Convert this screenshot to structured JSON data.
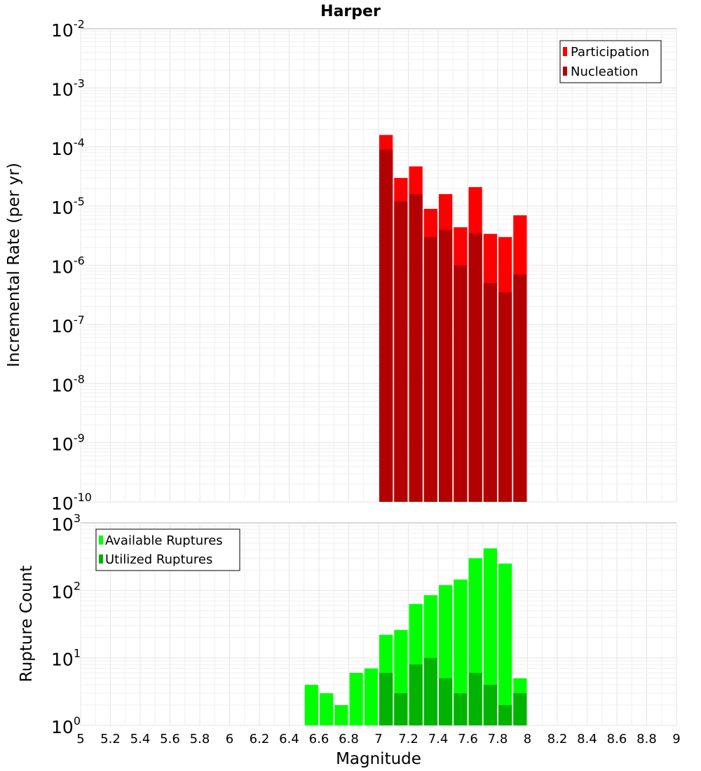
{
  "chart_data": [
    {
      "type": "bar",
      "title": "Harper",
      "xlabel": "",
      "ylabel": "Incremental Rate (per yr)",
      "yscale": "log",
      "ylim_exponents": [
        -10,
        -2
      ],
      "xlim": [
        5,
        9
      ],
      "bar_width": 0.1,
      "legend_position": "top-right",
      "series": [
        {
          "name": "Participation",
          "color": "#ff0000",
          "x": [
            7.0,
            7.1,
            7.2,
            7.3,
            7.4,
            7.5,
            7.6,
            7.7,
            7.8,
            7.9
          ],
          "values": [
            0.00016,
            3e-05,
            4.7e-05,
            9e-06,
            1.6e-05,
            4.4e-06,
            2.1e-05,
            3.4e-06,
            3e-06,
            7e-06
          ]
        },
        {
          "name": "Nucleation",
          "color": "#b30000",
          "x": [
            7.0,
            7.1,
            7.2,
            7.3,
            7.4,
            7.5,
            7.6,
            7.7,
            7.8,
            7.9
          ],
          "values": [
            9e-05,
            1.2e-05,
            1.6e-05,
            3e-06,
            4e-06,
            1e-06,
            3.5e-06,
            5e-07,
            3.5e-07,
            7e-07
          ]
        }
      ]
    },
    {
      "type": "bar",
      "title": "",
      "xlabel": "Magnitude",
      "ylabel": "Rupture Count",
      "yscale": "log",
      "ylim_exponents": [
        0,
        3
      ],
      "xlim": [
        5,
        9
      ],
      "bar_width": 0.1,
      "legend_position": "top-left",
      "series": [
        {
          "name": "Available Ruptures",
          "color": "#00ff00",
          "x": [
            6.5,
            6.6,
            6.7,
            6.8,
            6.9,
            7.0,
            7.1,
            7.2,
            7.3,
            7.4,
            7.5,
            7.6,
            7.7,
            7.8,
            7.9
          ],
          "values": [
            4,
            3,
            2,
            6,
            7,
            22,
            26,
            63,
            85,
            120,
            145,
            300,
            420,
            250,
            5
          ]
        },
        {
          "name": "Utilized Ruptures",
          "color": "#00b300",
          "x": [
            7.0,
            7.1,
            7.2,
            7.3,
            7.4,
            7.5,
            7.6,
            7.7,
            7.8,
            7.9
          ],
          "values": [
            6,
            3,
            8,
            10,
            5,
            3,
            6,
            4,
            2,
            3
          ]
        }
      ]
    }
  ],
  "ticks": {
    "x": [
      "5",
      "5.2",
      "5.4",
      "5.6",
      "5.8",
      "6",
      "6.2",
      "6.4",
      "6.6",
      "6.8",
      "7",
      "7.2",
      "7.4",
      "7.6",
      "7.8",
      "8",
      "8.2",
      "8.4",
      "8.6",
      "8.8",
      "9"
    ],
    "top_exponents": [
      "-2",
      "-3",
      "-4",
      "-5",
      "-6",
      "-7",
      "-8",
      "-9",
      "-10"
    ],
    "bottom_exponents": [
      "3",
      "2",
      "1",
      "0"
    ],
    "base": "10"
  }
}
